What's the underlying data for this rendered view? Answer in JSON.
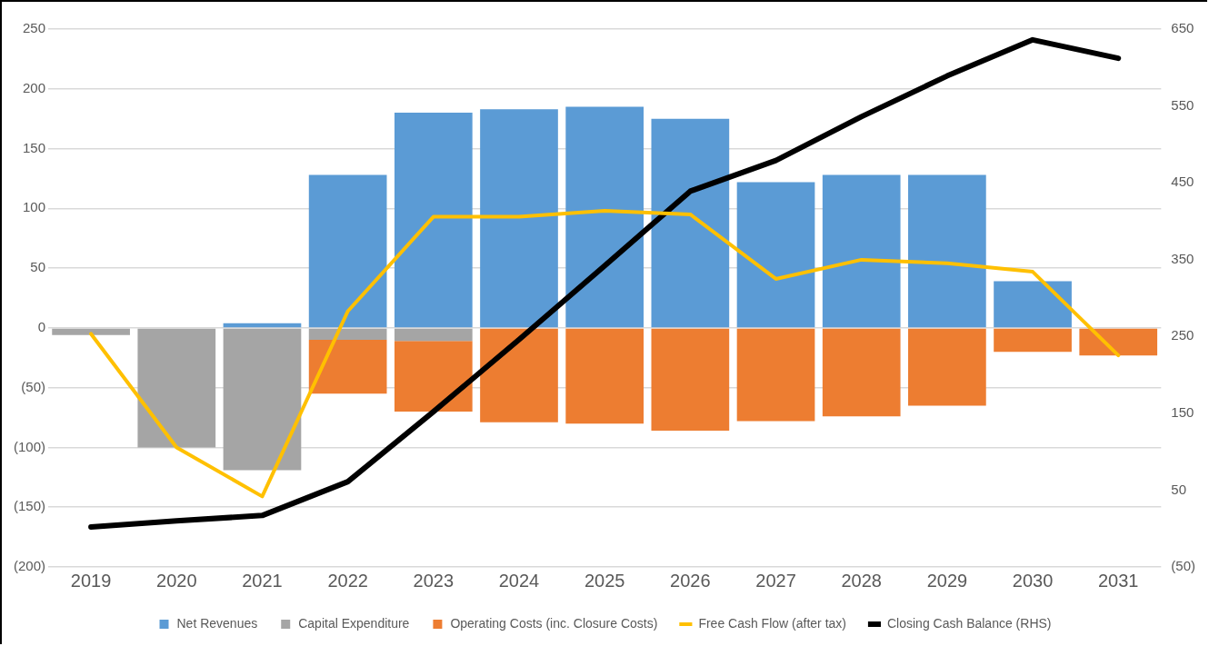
{
  "chart_data": {
    "type": "bar",
    "stacked": true,
    "categories": [
      "2019",
      "2020",
      "2021",
      "2022",
      "2023",
      "2024",
      "2025",
      "2026",
      "2027",
      "2028",
      "2029",
      "2030",
      "2031"
    ],
    "series": [
      {
        "name": "Net Revenues",
        "color": "#5b9bd5",
        "values": [
          0,
          0,
          4,
          128,
          180,
          183,
          185,
          175,
          122,
          128,
          128,
          39,
          0
        ]
      },
      {
        "name": "Capital Expenditure",
        "color": "#a5a5a5",
        "values": [
          -6,
          -100,
          -119,
          -10,
          -11,
          0,
          0,
          0,
          0,
          0,
          0,
          0,
          0
        ]
      },
      {
        "name": "Operating Costs (inc. Closure Costs)",
        "color": "#ed7d31",
        "values": [
          0,
          0,
          0,
          -45,
          -59,
          -79,
          -80,
          -86,
          -78,
          -74,
          -65,
          -20,
          -23
        ]
      },
      {
        "name": "Free Cash Flow (after tax)",
        "type": "line",
        "color": "#ffc000",
        "values": [
          -5,
          -100,
          -141,
          14,
          93,
          93,
          98,
          95,
          41,
          57,
          54,
          47,
          -23
        ]
      },
      {
        "name": "Closing Cash Balance (RHS)",
        "type": "line",
        "axis": "y2",
        "color": "#000000",
        "values": [
          2,
          10,
          17,
          61,
          152,
          246,
          342,
          439,
          479,
          536,
          589,
          636,
          612
        ]
      }
    ],
    "ylim": [
      -200,
      250
    ],
    "yticks": [
      {
        "value": -200,
        "label": "(200)"
      },
      {
        "value": -150,
        "label": "(150)"
      },
      {
        "value": -100,
        "label": "(100)"
      },
      {
        "value": -50,
        "label": "(50)"
      },
      0,
      50,
      100,
      150,
      200,
      250
    ],
    "y2lim": [
      -50,
      650
    ],
    "y2ticks": [
      {
        "value": -50,
        "label": "(50)"
      },
      50,
      150,
      250,
      350,
      450,
      550,
      650
    ],
    "grid": "y",
    "legend": "bottom",
    "marker": "none",
    "line_style": "solid"
  }
}
